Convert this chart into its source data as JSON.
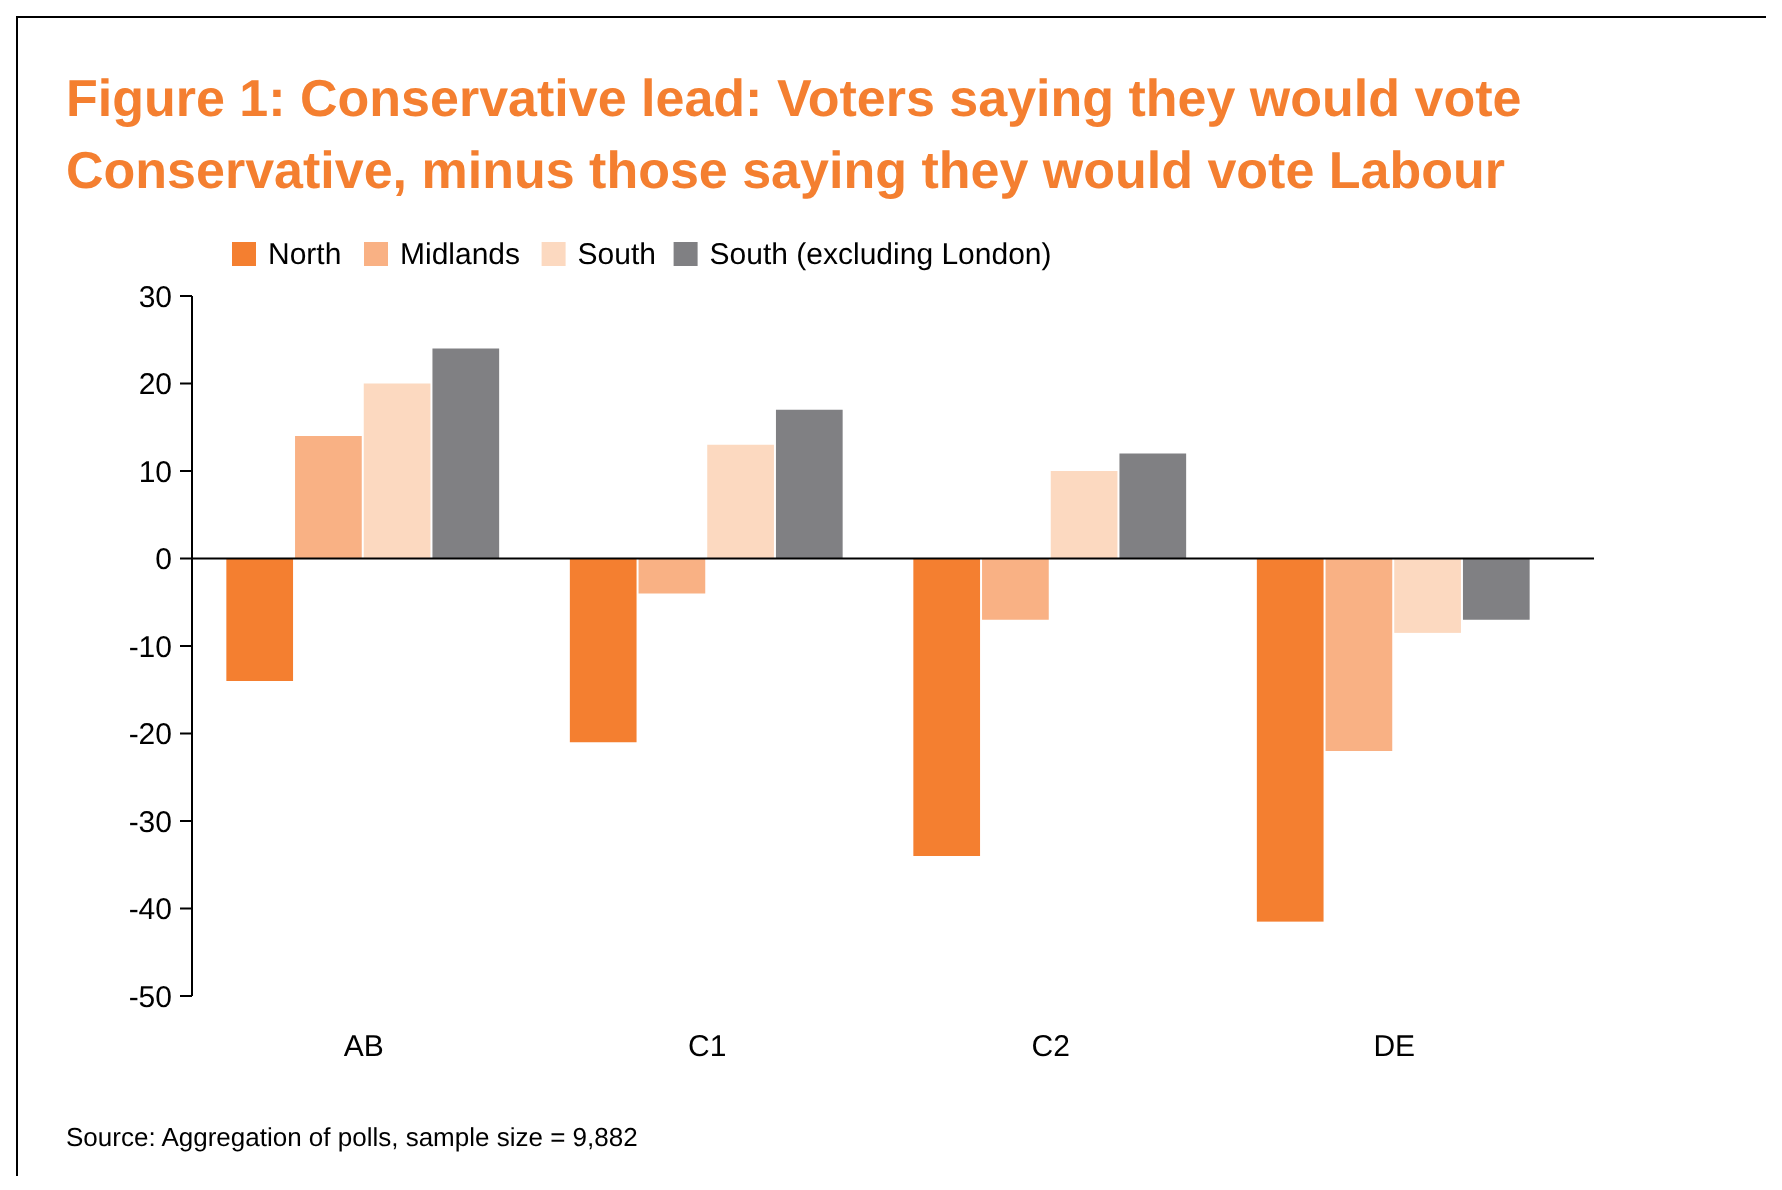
{
  "chart_data": {
    "type": "bar",
    "title": "Figure 1: Conservative lead: Voters saying they would vote Conservative, minus those saying they would vote Labour",
    "categories": [
      "AB",
      "C1",
      "C2",
      "DE"
    ],
    "series": [
      {
        "name": "North",
        "color": "#f47f30",
        "values": [
          -14,
          -21,
          -34,
          -41.5
        ]
      },
      {
        "name": "Midlands",
        "color": "#f9b184",
        "values": [
          14,
          -4,
          -7,
          -22
        ]
      },
      {
        "name": "South",
        "color": "#fcd9c0",
        "values": [
          20,
          13,
          10,
          -8.5
        ]
      },
      {
        "name": "South (excluding London)",
        "color": "#808083",
        "values": [
          24,
          17,
          12,
          -7
        ]
      }
    ],
    "ylim": [
      -50,
      30
    ],
    "yticks": [
      -50,
      -40,
      -30,
      -20,
      -10,
      0,
      10,
      20,
      30
    ],
    "legend": "top",
    "annotations": [
      "Source: Aggregation of polls, sample size = 9,882"
    ]
  }
}
